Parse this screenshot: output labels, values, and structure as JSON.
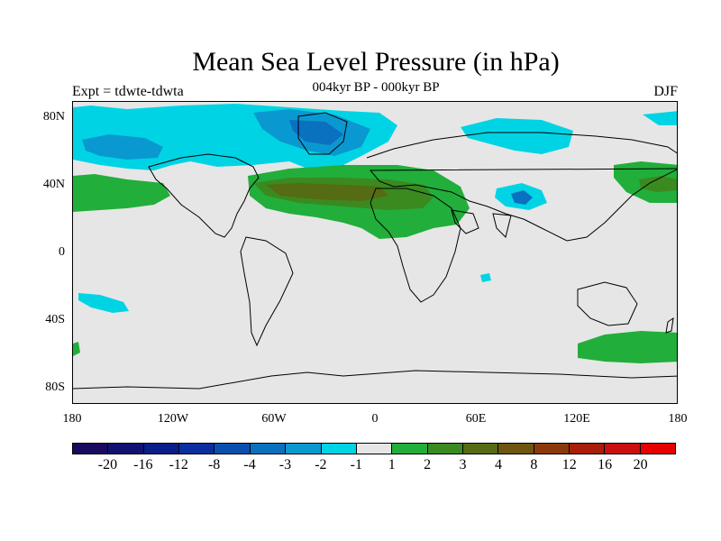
{
  "title": "Mean Sea Level Pressure (in hPa)",
  "subtitle": "004kyr BP - 000kyr BP",
  "left_label": "Expt = tdwte-tdwta",
  "right_label": "DJF",
  "y_ticks": [
    "80N",
    "40N",
    "0",
    "40S",
    "80S"
  ],
  "x_ticks": [
    "180",
    "120W",
    "60W",
    "0",
    "60E",
    "120E",
    "180"
  ],
  "colorbar": {
    "labels": [
      "-20",
      "-16",
      "-12",
      "-8",
      "-4",
      "-3",
      "-2",
      "-1",
      "1",
      "2",
      "3",
      "4",
      "8",
      "12",
      "16",
      "20"
    ],
    "colors": [
      "#1a0a5e",
      "#0f1270",
      "#0a1d8a",
      "#0a2fa0",
      "#0a4fb0",
      "#0a70c0",
      "#0a98d0",
      "#00d4e4",
      "#e6e6e6",
      "#22ae3a",
      "#3a8a20",
      "#556b14",
      "#6e5510",
      "#8a3a0a",
      "#a81e08",
      "#c81010",
      "#e60000"
    ]
  },
  "colors": {
    "background": "#e6e6e6",
    "land_outline": "#000000"
  },
  "map_regions": [
    {
      "name": "arctic-north-america-cyan",
      "level": "-1"
    },
    {
      "name": "north-pacific-blue",
      "level": "-2"
    },
    {
      "name": "greenland-blue",
      "level": "-2"
    },
    {
      "name": "siberia-cyan",
      "level": "-1"
    },
    {
      "name": "tibet-low",
      "level": "-3"
    },
    {
      "name": "atlantic-sahara-high",
      "level": "2"
    },
    {
      "name": "atlantic-sahara-core",
      "level": "3"
    },
    {
      "name": "north-pacific-east-high",
      "level": "2"
    },
    {
      "name": "west-pacific-high",
      "level": "2"
    },
    {
      "name": "southern-ocean-high",
      "level": "2"
    },
    {
      "name": "south-pacific-cyan",
      "level": "-1"
    }
  ]
}
